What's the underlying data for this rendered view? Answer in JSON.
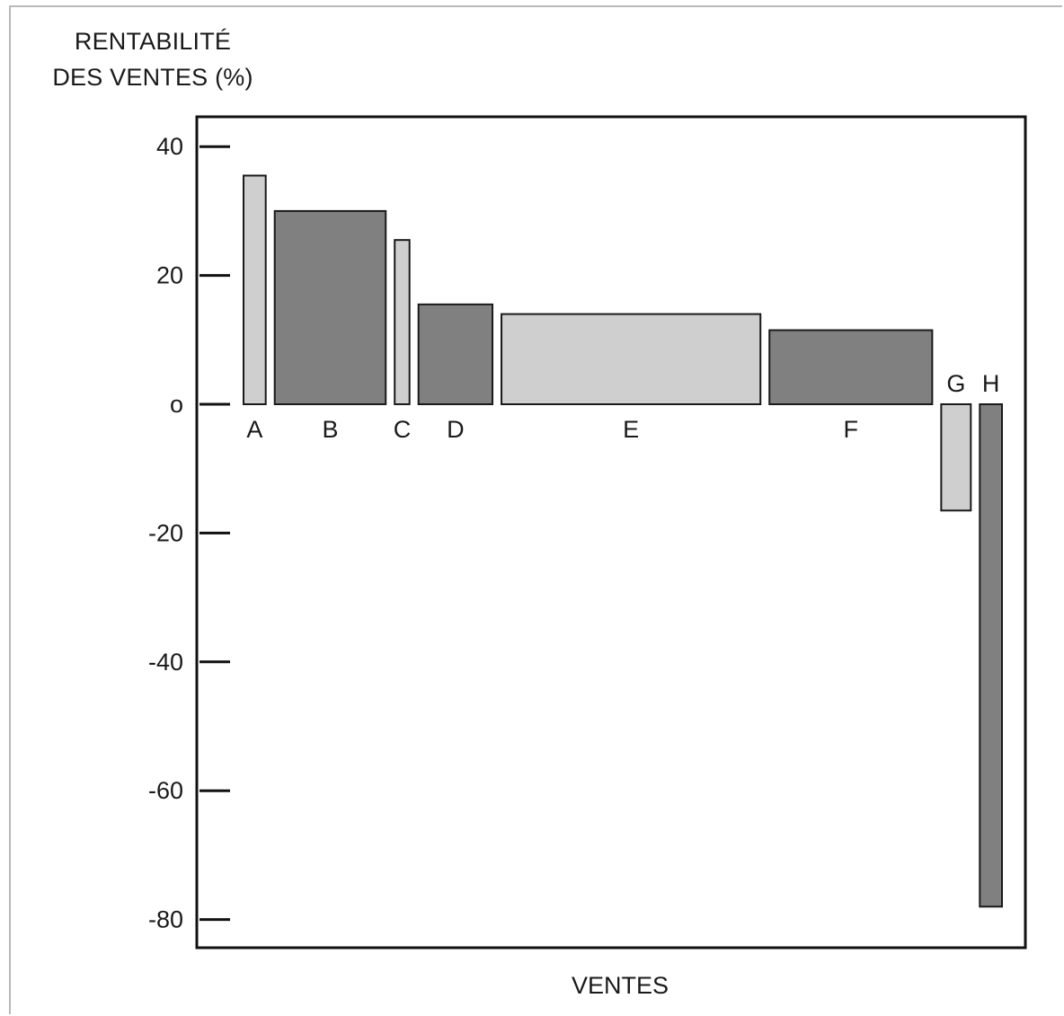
{
  "chart_data": {
    "type": "bar",
    "subtype": "variable-width (marimekko) bar",
    "ylabel_lines": [
      "RENTABILITÉ",
      "DES VENTES (%)"
    ],
    "xlabel": "VENTES",
    "ylim": [
      -80,
      40
    ],
    "yticks": [
      "40",
      "20",
      "o",
      "-20",
      "-40",
      "-60",
      "-80"
    ],
    "ytick_values": [
      40,
      20,
      0,
      -20,
      -40,
      -60,
      -80
    ],
    "grid": false,
    "legend": "none",
    "categories": [
      "A",
      "B",
      "C",
      "D",
      "E",
      "F",
      "G",
      "H"
    ],
    "values": [
      35.5,
      30,
      25.5,
      15.5,
      14,
      11.5,
      -16.5,
      -78
    ],
    "relative_sales": [
      3,
      15,
      2,
      10,
      35,
      22,
      4,
      3
    ],
    "bar_colors": [
      "#cfcfcf",
      "#808080",
      "#cfcfcf",
      "#808080",
      "#cfcfcf",
      "#808080",
      "#cfcfcf",
      "#808080"
    ]
  }
}
